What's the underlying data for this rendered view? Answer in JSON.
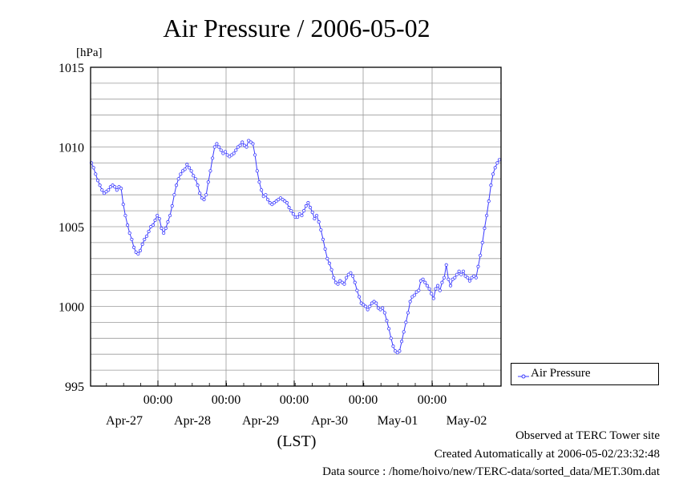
{
  "chart_data": {
    "type": "line",
    "title": "Air Pressure / 2006-05-02",
    "ylabel": "[hPa]",
    "xlabel": "(LST)",
    "ylim": [
      995,
      1015
    ],
    "yticks": [
      995,
      1000,
      1005,
      1010,
      1015
    ],
    "x_time_labels": [
      "00:00",
      "00:00",
      "00:00",
      "00:00",
      "00:00"
    ],
    "x_date_labels": [
      "Apr-27",
      "Apr-28",
      "Apr-29",
      "Apr-30",
      "May-01",
      "May-02"
    ],
    "grid": true,
    "color": "#3a3aff",
    "legend_position": "right",
    "series": [
      {
        "name": "Air Pressure",
        "values": [
          1009.0,
          1008.7,
          1008.3,
          1007.9,
          1007.6,
          1007.3,
          1007.1,
          1007.2,
          1007.3,
          1007.5,
          1007.6,
          1007.5,
          1007.3,
          1007.5,
          1007.4,
          1006.4,
          1005.7,
          1005.1,
          1004.6,
          1004.2,
          1003.7,
          1003.4,
          1003.3,
          1003.5,
          1003.9,
          1004.2,
          1004.4,
          1004.7,
          1005.0,
          1005.1,
          1005.4,
          1005.7,
          1005.5,
          1004.9,
          1004.6,
          1004.9,
          1005.3,
          1005.7,
          1006.3,
          1007.0,
          1007.6,
          1008.0,
          1008.3,
          1008.5,
          1008.6,
          1008.9,
          1008.7,
          1008.5,
          1008.2,
          1008.0,
          1007.6,
          1007.1,
          1006.8,
          1006.7,
          1007.0,
          1007.8,
          1008.5,
          1009.3,
          1010.0,
          1010.2,
          1010.0,
          1009.8,
          1009.6,
          1009.7,
          1009.5,
          1009.4,
          1009.5,
          1009.6,
          1009.8,
          1010.0,
          1010.1,
          1010.3,
          1010.1,
          1010.0,
          1010.4,
          1010.3,
          1010.2,
          1009.5,
          1008.5,
          1007.8,
          1007.3,
          1006.9,
          1007.0,
          1006.7,
          1006.5,
          1006.4,
          1006.5,
          1006.6,
          1006.7,
          1006.8,
          1006.7,
          1006.6,
          1006.5,
          1006.2,
          1006.0,
          1005.8,
          1005.6,
          1005.6,
          1005.8,
          1005.7,
          1006.0,
          1006.3,
          1006.5,
          1006.2,
          1005.9,
          1005.5,
          1005.7,
          1005.3,
          1004.8,
          1004.2,
          1003.6,
          1003.0,
          1002.7,
          1002.3,
          1001.8,
          1001.5,
          1001.4,
          1001.6,
          1001.5,
          1001.4,
          1001.8,
          1002.0,
          1002.1,
          1001.9,
          1001.5,
          1001.0,
          1000.6,
          1000.2,
          1000.1,
          1000.0,
          999.8,
          1000.0,
          1000.2,
          1000.3,
          1000.2,
          999.9,
          999.8,
          999.9,
          999.6,
          999.1,
          998.6,
          998.0,
          997.5,
          997.2,
          997.1,
          997.2,
          997.8,
          998.4,
          999.0,
          999.6,
          1000.3,
          1000.6,
          1000.7,
          1000.9,
          1001.0,
          1001.6,
          1001.7,
          1001.5,
          1001.3,
          1001.1,
          1000.8,
          1000.5,
          1001.1,
          1001.3,
          1001.0,
          1001.5,
          1001.8,
          1002.6,
          1001.7,
          1001.3,
          1001.7,
          1001.8,
          1002.0,
          1002.2,
          1002.0,
          1002.2,
          1001.9,
          1001.8,
          1001.6,
          1001.8,
          1001.9,
          1001.8,
          1002.5,
          1003.2,
          1004.0,
          1004.9,
          1005.7,
          1006.6,
          1007.6,
          1008.3,
          1008.7,
          1009.0,
          1009.2
        ]
      }
    ]
  },
  "footer": {
    "observed": "Observed at TERC Tower site",
    "created": "Created Automatically at 2006-05-02/23:32:48",
    "source": "Data source : /home/hoivo/new/TERC-data/sorted_data/MET.30m.dat"
  }
}
